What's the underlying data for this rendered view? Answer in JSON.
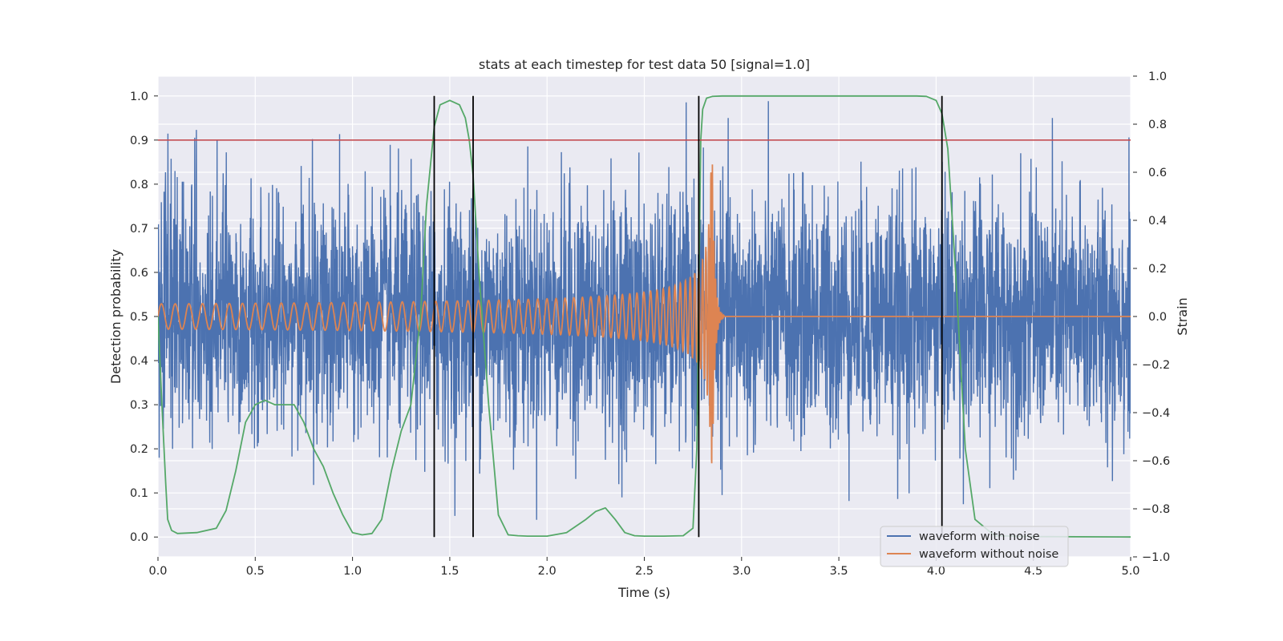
{
  "chart_data": {
    "type": "line",
    "title": "stats at each timestep for test data 50 [signal=1.0]",
    "xlabel": "Time (s)",
    "ylabel": "Detection probability",
    "y2label": "Strain",
    "xlim": [
      0.0,
      5.0
    ],
    "ylim": [
      -0.045,
      1.045
    ],
    "y2lim": [
      -1.0,
      1.0
    ],
    "xticks": [
      0.0,
      0.5,
      1.0,
      1.5,
      2.0,
      2.5,
      3.0,
      3.5,
      4.0,
      4.5,
      5.0
    ],
    "yticks": [
      0.0,
      0.1,
      0.2,
      0.3,
      0.4,
      0.5,
      0.6,
      0.7,
      0.8,
      0.9,
      1.0
    ],
    "y2ticks": [
      -1.0,
      -0.8,
      -0.6,
      -0.4,
      -0.2,
      0.0,
      0.2,
      0.4,
      0.6,
      0.8,
      1.0
    ],
    "grid": true,
    "legend_position": "lower-right",
    "threshold": 0.9,
    "event_markers_x": [
      1.42,
      1.62,
      2.78,
      4.03
    ],
    "colors": {
      "noisy": "#4c72b0",
      "clean": "#dd8452",
      "probability": "#55a868",
      "threshold": "#c44e52",
      "marker": "#000000",
      "background": "#eaeaf2",
      "grid": "#ffffff"
    },
    "series": [
      {
        "name": "waveform with noise",
        "axis": "right",
        "description_values": {
          "x_start": 0.0,
          "x_end": 5.0,
          "mean": 0.0,
          "min": -0.93,
          "max": 0.97
        }
      },
      {
        "name": "waveform without noise",
        "axis": "right",
        "chirp": {
          "x_start": 0.0,
          "x_merger": 2.85,
          "x_end": 5.0,
          "amp_start": 0.03,
          "amp_peak": 0.64,
          "freq_start_hz": 14,
          "freq_merger_hz": 60
        }
      },
      {
        "axis": "left",
        "x": [
          0.0,
          0.02,
          0.04,
          0.05,
          0.07,
          0.1,
          0.2,
          0.3,
          0.35,
          0.4,
          0.45,
          0.5,
          0.55,
          0.6,
          0.65,
          0.7,
          0.75,
          0.8,
          0.85,
          0.9,
          0.95,
          1.0,
          1.05,
          1.1,
          1.15,
          1.2,
          1.25,
          1.3,
          1.35,
          1.38,
          1.42,
          1.45,
          1.5,
          1.55,
          1.58,
          1.6,
          1.62,
          1.65,
          1.7,
          1.75,
          1.8,
          1.85,
          1.9,
          2.0,
          2.1,
          2.2,
          2.25,
          2.3,
          2.35,
          2.4,
          2.45,
          2.5,
          2.6,
          2.7,
          2.75,
          2.77,
          2.79,
          2.8,
          2.82,
          2.85,
          2.9,
          3.0,
          3.5,
          3.9,
          3.95,
          4.0,
          4.03,
          4.06,
          4.1,
          4.15,
          4.2,
          4.3,
          4.5,
          5.0
        ],
        "y": [
          0.5,
          0.3,
          0.12,
          0.04,
          0.015,
          0.008,
          0.01,
          0.02,
          0.06,
          0.15,
          0.26,
          0.3,
          0.31,
          0.3,
          0.3,
          0.3,
          0.26,
          0.2,
          0.16,
          0.1,
          0.05,
          0.01,
          0.005,
          0.008,
          0.04,
          0.15,
          0.24,
          0.3,
          0.5,
          0.75,
          0.93,
          0.98,
          0.99,
          0.98,
          0.95,
          0.9,
          0.82,
          0.6,
          0.3,
          0.05,
          0.005,
          0.003,
          0.002,
          0.002,
          0.01,
          0.04,
          0.058,
          0.066,
          0.04,
          0.01,
          0.003,
          0.002,
          0.002,
          0.003,
          0.02,
          0.2,
          0.9,
          0.97,
          0.995,
          0.999,
          1.0,
          1.0,
          1.0,
          1.0,
          0.999,
          0.99,
          0.96,
          0.88,
          0.6,
          0.2,
          0.04,
          0.003,
          0.001,
          0.0
        ]
      }
    ]
  }
}
